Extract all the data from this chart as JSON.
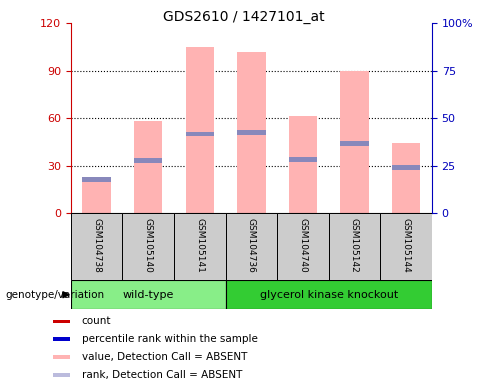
{
  "title": "GDS2610 / 1427101_at",
  "samples": [
    "GSM104738",
    "GSM105140",
    "GSM105141",
    "GSM104736",
    "GSM104740",
    "GSM105142",
    "GSM105144"
  ],
  "pink_bar_heights": [
    20,
    58,
    105,
    102,
    61,
    90,
    44
  ],
  "blue_marker_heights": [
    21,
    33,
    50,
    51,
    34,
    44,
    29
  ],
  "ylim_left": [
    0,
    120
  ],
  "ylim_right": [
    0,
    100
  ],
  "yticks_left": [
    0,
    30,
    60,
    90,
    120
  ],
  "yticks_right": [
    0,
    25,
    50,
    75,
    100
  ],
  "yticklabels_left": [
    "0",
    "30",
    "60",
    "90",
    "120"
  ],
  "yticklabels_right": [
    "0",
    "25",
    "50",
    "75",
    "100%"
  ],
  "pink_color": "#FFB3B3",
  "blue_color": "#8888BB",
  "red_color": "#CC0000",
  "blue_dark": "#0000CC",
  "left_tick_color": "#CC0000",
  "right_tick_color": "#0000BB",
  "wildtype_color": "#88EE88",
  "knockout_color": "#33CC33",
  "sample_bg_color": "#CCCCCC",
  "genotype_label": "genotype/variation",
  "wt_label": "wild-type",
  "ko_label": "glycerol kinase knockout",
  "legend_colors": [
    "#CC0000",
    "#0000CC",
    "#FFB3B3",
    "#BBBBDD"
  ],
  "legend_labels": [
    "count",
    "percentile rank within the sample",
    "value, Detection Call = ABSENT",
    "rank, Detection Call = ABSENT"
  ]
}
